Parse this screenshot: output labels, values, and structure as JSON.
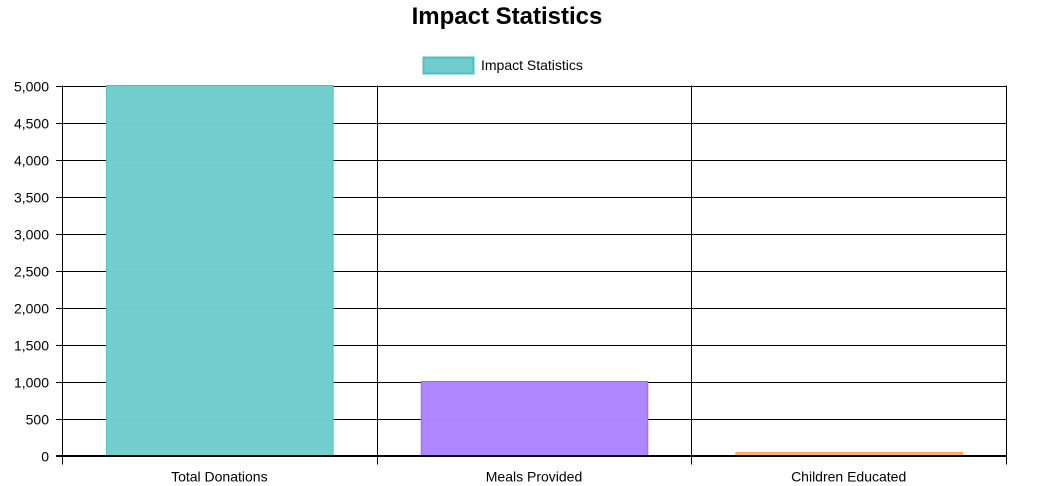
{
  "chart_data": {
    "type": "bar",
    "title": "Impact Statistics",
    "categories": [
      "Total Donations",
      "Meals Provided",
      "Children Educated"
    ],
    "series": [
      {
        "name": "Impact Statistics",
        "values": [
          5000,
          1000,
          40
        ]
      }
    ],
    "bar_fill_colors": [
      "#71cdcd",
      "#ad85ff",
      "#ffb47a"
    ],
    "bar_border_colors": [
      "#4bc0c0",
      "#9966ff",
      "#ff9f40"
    ],
    "legend_fill_color": "#71cdcd",
    "legend_border_color": "#4bc0c0",
    "ylim": [
      0,
      5000
    ],
    "y_ticks": [
      0,
      500,
      1000,
      1500,
      2000,
      2500,
      3000,
      3500,
      4000,
      4500,
      5000
    ],
    "xlabel": "",
    "ylabel": "",
    "grid": true,
    "legend_position": "top"
  }
}
